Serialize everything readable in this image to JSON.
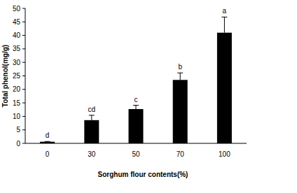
{
  "chart_data": {
    "type": "bar",
    "x_label": "Sorghum flour contents(%)",
    "y_label": "Total phenol(mg/g)",
    "categories": [
      "0",
      "30",
      "50",
      "70",
      "100"
    ],
    "values": [
      0.6,
      8.6,
      12.7,
      23.5,
      41
    ],
    "errors": [
      0.1,
      1.8,
      1.4,
      2.6,
      5.8
    ],
    "annotations": [
      "d",
      "cd",
      "c",
      "b",
      "a"
    ],
    "color": "#000000",
    "ylim": [
      0,
      50
    ],
    "yticks": [
      0,
      5,
      10,
      15,
      20,
      25,
      30,
      35,
      40,
      45,
      50
    ],
    "grid": false
  }
}
